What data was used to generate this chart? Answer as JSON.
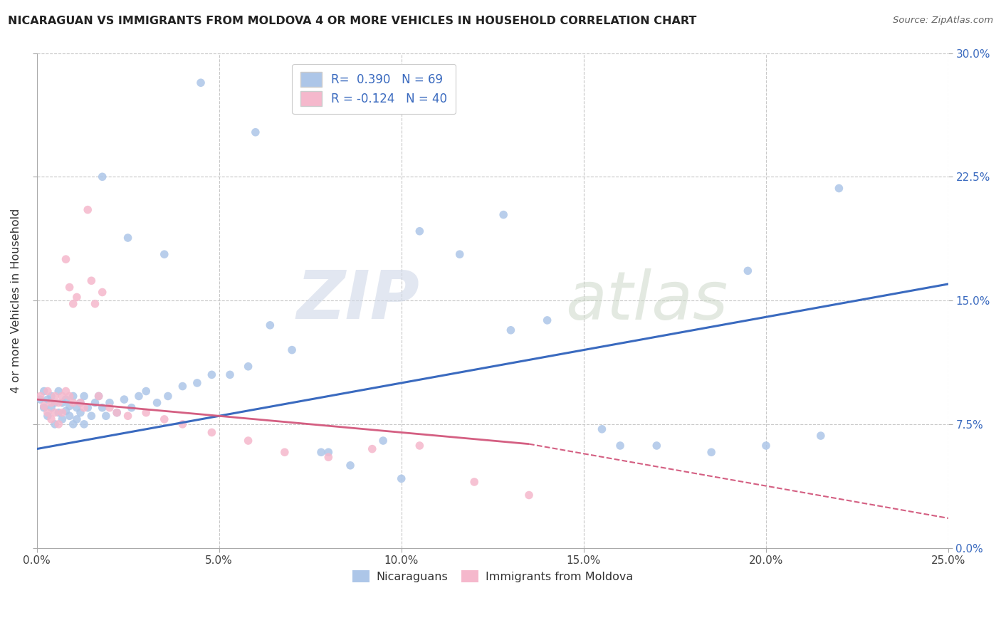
{
  "title": "NICARAGUAN VS IMMIGRANTS FROM MOLDOVA 4 OR MORE VEHICLES IN HOUSEHOLD CORRELATION CHART",
  "source": "Source: ZipAtlas.com",
  "ylabel": "4 or more Vehicles in Household",
  "xlim": [
    0.0,
    0.25
  ],
  "ylim": [
    0.0,
    0.3
  ],
  "legend_label1": "Nicaraguans",
  "legend_label2": "Immigrants from Moldova",
  "R1": 0.39,
  "N1": 69,
  "R2": -0.124,
  "N2": 40,
  "color1": "#adc6e8",
  "color2": "#f5b8cc",
  "line_color1": "#3a6abf",
  "line_color2": "#d45f82",
  "watermark_zip": "ZIP",
  "watermark_atlas": "atlas",
  "background_color": "#ffffff",
  "grid_color": "#c8c8c8",
  "x_ticks": [
    0.0,
    0.05,
    0.1,
    0.15,
    0.2,
    0.25
  ],
  "y_ticks": [
    0.0,
    0.075,
    0.15,
    0.225,
    0.3
  ],
  "scatter1_x": [
    0.001,
    0.002,
    0.002,
    0.003,
    0.003,
    0.004,
    0.004,
    0.005,
    0.005,
    0.006,
    0.006,
    0.007,
    0.007,
    0.008,
    0.008,
    0.009,
    0.009,
    0.01,
    0.01,
    0.011,
    0.011,
    0.012,
    0.012,
    0.013,
    0.013,
    0.014,
    0.015,
    0.016,
    0.017,
    0.018,
    0.019,
    0.02,
    0.022,
    0.024,
    0.026,
    0.028,
    0.03,
    0.033,
    0.036,
    0.04,
    0.044,
    0.048,
    0.053,
    0.058,
    0.064,
    0.07,
    0.078,
    0.086,
    0.095,
    0.105,
    0.116,
    0.128,
    0.14,
    0.155,
    0.17,
    0.185,
    0.2,
    0.215,
    0.018,
    0.025,
    0.035,
    0.045,
    0.06,
    0.08,
    0.1,
    0.13,
    0.16,
    0.195,
    0.22
  ],
  "scatter1_y": [
    0.09,
    0.085,
    0.095,
    0.08,
    0.09,
    0.085,
    0.092,
    0.075,
    0.088,
    0.082,
    0.095,
    0.078,
    0.088,
    0.083,
    0.09,
    0.08,
    0.086,
    0.075,
    0.092,
    0.085,
    0.078,
    0.088,
    0.082,
    0.075,
    0.092,
    0.085,
    0.08,
    0.088,
    0.092,
    0.085,
    0.08,
    0.088,
    0.082,
    0.09,
    0.085,
    0.092,
    0.095,
    0.088,
    0.092,
    0.098,
    0.1,
    0.105,
    0.105,
    0.11,
    0.135,
    0.12,
    0.058,
    0.05,
    0.065,
    0.192,
    0.178,
    0.202,
    0.138,
    0.072,
    0.062,
    0.058,
    0.062,
    0.068,
    0.225,
    0.188,
    0.178,
    0.282,
    0.252,
    0.058,
    0.042,
    0.132,
    0.062,
    0.168,
    0.218
  ],
  "scatter2_x": [
    0.001,
    0.002,
    0.003,
    0.003,
    0.004,
    0.004,
    0.005,
    0.005,
    0.006,
    0.006,
    0.007,
    0.007,
    0.008,
    0.008,
    0.009,
    0.009,
    0.01,
    0.01,
    0.011,
    0.012,
    0.013,
    0.014,
    0.015,
    0.016,
    0.017,
    0.018,
    0.02,
    0.022,
    0.025,
    0.03,
    0.035,
    0.04,
    0.048,
    0.058,
    0.068,
    0.08,
    0.092,
    0.105,
    0.12,
    0.135
  ],
  "scatter2_y": [
    0.092,
    0.086,
    0.082,
    0.095,
    0.088,
    0.078,
    0.092,
    0.082,
    0.088,
    0.075,
    0.092,
    0.082,
    0.095,
    0.175,
    0.092,
    0.158,
    0.088,
    0.148,
    0.152,
    0.088,
    0.085,
    0.205,
    0.162,
    0.148,
    0.092,
    0.155,
    0.085,
    0.082,
    0.08,
    0.082,
    0.078,
    0.075,
    0.07,
    0.065,
    0.058,
    0.055,
    0.06,
    0.062,
    0.04,
    0.032
  ],
  "line1_x0": 0.0,
  "line1_y0": 0.06,
  "line1_x1": 0.25,
  "line1_y1": 0.16,
  "line2_solid_x0": 0.0,
  "line2_solid_y0": 0.09,
  "line2_solid_x1": 0.135,
  "line2_solid_y1": 0.063,
  "line2_dash_x0": 0.135,
  "line2_dash_y0": 0.063,
  "line2_dash_x1": 0.25,
  "line2_dash_y1": 0.018
}
